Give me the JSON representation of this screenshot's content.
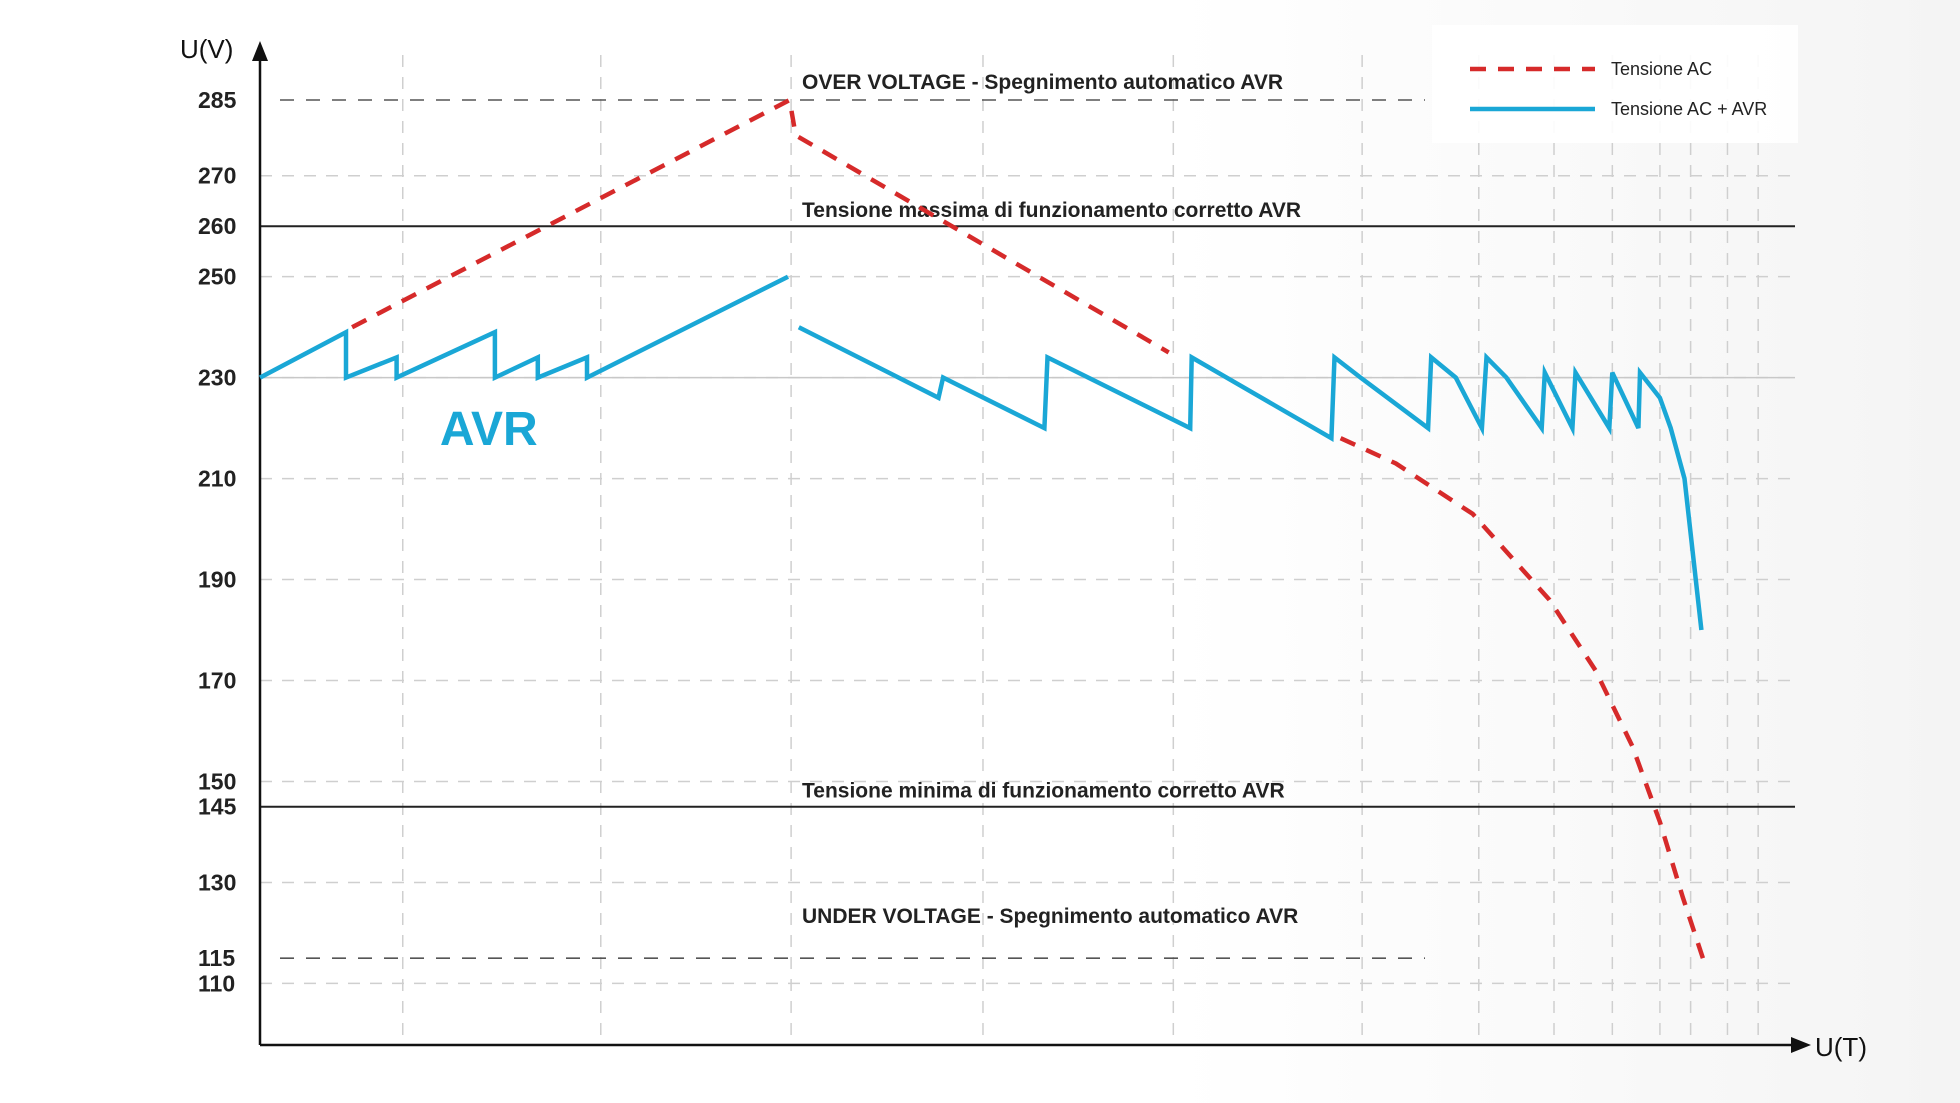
{
  "chart_data": {
    "type": "line",
    "y_axis_label": "U(V)",
    "x_axis_label": "U(T)",
    "ylim": [
      95,
      292
    ],
    "xlim": [
      0,
      100
    ],
    "y_ticks": [
      {
        "value": 285,
        "label": "285",
        "color": "#d62a2a"
      },
      {
        "value": 270,
        "label": "270",
        "color": "#222222"
      },
      {
        "value": 260,
        "label": "260",
        "color": "#d62a2a"
      },
      {
        "value": 250,
        "label": "250",
        "color": "#222222"
      },
      {
        "value": 230,
        "label": "230",
        "color": "#222222"
      },
      {
        "value": 210,
        "label": "210",
        "color": "#222222"
      },
      {
        "value": 190,
        "label": "190",
        "color": "#222222"
      },
      {
        "value": 170,
        "label": "170",
        "color": "#222222"
      },
      {
        "value": 150,
        "label": "150",
        "color": "#222222"
      },
      {
        "value": 145,
        "label": "145",
        "color": "#d62a2a"
      },
      {
        "value": 130,
        "label": "130",
        "color": "#222222"
      },
      {
        "value": 115,
        "label": "115",
        "color": "#d62a2a"
      },
      {
        "value": 110,
        "label": "110",
        "color": "#222222"
      }
    ],
    "x_gridlines": [
      9.3,
      22.2,
      34.6,
      47.1,
      59.5,
      71.8,
      79.4,
      84.3,
      88.1,
      91.2,
      93.2,
      95.6,
      97.6
    ],
    "h_gridlines": [
      270,
      250,
      230,
      210,
      190,
      170,
      150,
      130,
      110
    ],
    "reference_lines": [
      {
        "value": 285,
        "style": "dashed",
        "label": "OVER VOLTAGE - Spegnimento automatico AVR"
      },
      {
        "value": 260,
        "style": "solid",
        "label": "Tensione massima di funzionamento corretto AVR"
      },
      {
        "value": 145,
        "style": "solid",
        "label": "Tensione minima di funzionamento corretto AVR"
      },
      {
        "value": 115,
        "style": "dashed",
        "label": "UNDER VOLTAGE - Spegnimento automatico AVR"
      }
    ],
    "series": [
      {
        "name": "Tensione AC",
        "color": "#d62a2a",
        "style": "dashed",
        "points": [
          [
            6.0,
            240
          ],
          [
            34.5,
            285
          ],
          [
            34.9,
            278
          ],
          [
            59.2,
            235
          ]
        ]
      },
      {
        "name": "Tensione AC",
        "color": "#d62a2a",
        "style": "dashed",
        "points": [
          [
            70.4,
            218
          ],
          [
            74.0,
            213
          ],
          [
            79.0,
            203
          ],
          [
            84.0,
            186
          ],
          [
            87.0,
            172
          ],
          [
            89.4,
            157
          ],
          [
            91.2,
            142
          ],
          [
            92.7,
            127
          ],
          [
            94.0,
            115
          ]
        ]
      },
      {
        "name": "Tensione AC + AVR",
        "color": "#1aa7d6",
        "style": "solid",
        "points": [
          [
            0.0,
            230
          ],
          [
            5.6,
            239
          ],
          [
            5.6,
            230
          ],
          [
            8.9,
            234
          ],
          [
            8.9,
            230
          ],
          [
            15.3,
            239
          ],
          [
            15.3,
            230
          ],
          [
            18.1,
            234
          ],
          [
            18.1,
            230
          ],
          [
            21.3,
            234
          ],
          [
            21.3,
            230
          ],
          [
            34.4,
            250
          ]
        ]
      },
      {
        "name": "Tensione AC + AVR",
        "color": "#1aa7d6",
        "style": "solid",
        "points": [
          [
            35.1,
            240
          ],
          [
            44.2,
            226
          ],
          [
            44.5,
            230
          ],
          [
            51.1,
            220
          ],
          [
            51.3,
            234
          ],
          [
            60.6,
            220
          ],
          [
            60.7,
            234
          ],
          [
            69.8,
            218
          ],
          [
            70.0,
            234
          ],
          [
            71.7,
            230
          ],
          [
            76.1,
            220
          ],
          [
            76.3,
            234
          ],
          [
            77.9,
            230
          ],
          [
            79.6,
            220
          ],
          [
            79.9,
            234
          ],
          [
            81.2,
            230
          ],
          [
            83.5,
            220
          ],
          [
            83.7,
            231
          ],
          [
            85.5,
            220
          ],
          [
            85.7,
            231
          ],
          [
            87.9,
            220
          ],
          [
            88.1,
            231
          ],
          [
            89.8,
            220
          ],
          [
            89.9,
            231
          ],
          [
            91.2,
            226
          ],
          [
            91.9,
            220
          ],
          [
            92.8,
            210
          ],
          [
            93.9,
            180
          ]
        ]
      }
    ],
    "annotations": [
      {
        "text": "AVR",
        "x": 15.5,
        "y": 220
      }
    ],
    "legend": {
      "position": "top-right",
      "entries": [
        {
          "label": "Tensione AC",
          "color": "#d62a2a",
          "style": "dashed"
        },
        {
          "label": "Tensione AC + AVR",
          "color": "#1aa7d6",
          "style": "solid"
        }
      ]
    }
  }
}
